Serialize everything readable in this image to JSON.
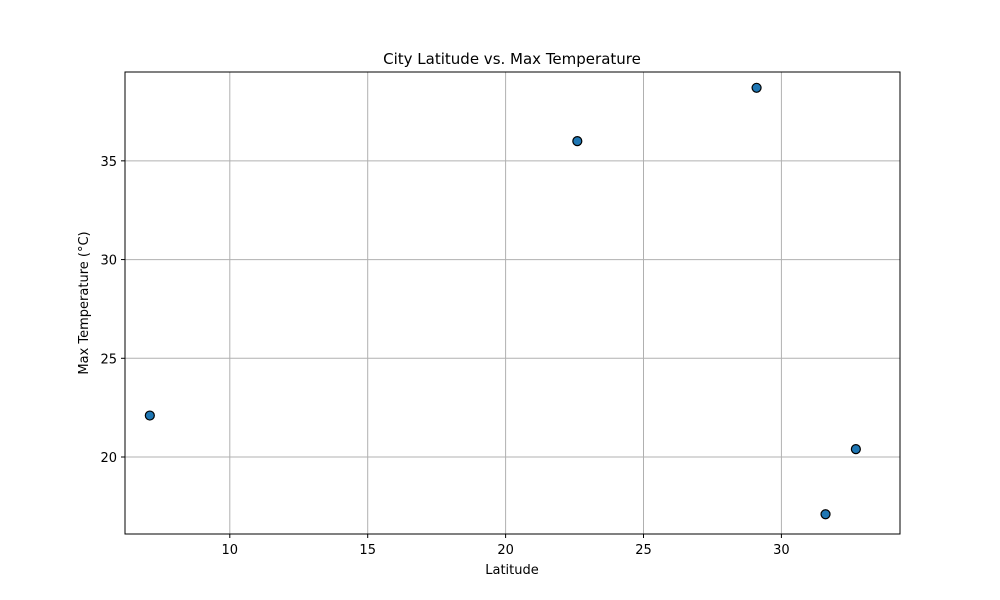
{
  "chart_data": {
    "type": "scatter",
    "title": "City Latitude vs. Max Temperature",
    "xlabel": "Latitude",
    "ylabel": "Max Temperature (°C)",
    "xlim": [
      6.2,
      34.3
    ],
    "ylim": [
      16.1,
      39.5
    ],
    "xticks": [
      10,
      15,
      20,
      25,
      30
    ],
    "yticks": [
      20,
      25,
      30,
      35
    ],
    "grid": true,
    "series": [
      {
        "marker_color": "#1f77b4",
        "edge_color": "#000000",
        "points": [
          {
            "x": 7.1,
            "y": 22.1
          },
          {
            "x": 22.6,
            "y": 36.0
          },
          {
            "x": 29.1,
            "y": 38.7
          },
          {
            "x": 31.6,
            "y": 17.1
          },
          {
            "x": 32.7,
            "y": 20.4
          }
        ]
      }
    ]
  }
}
